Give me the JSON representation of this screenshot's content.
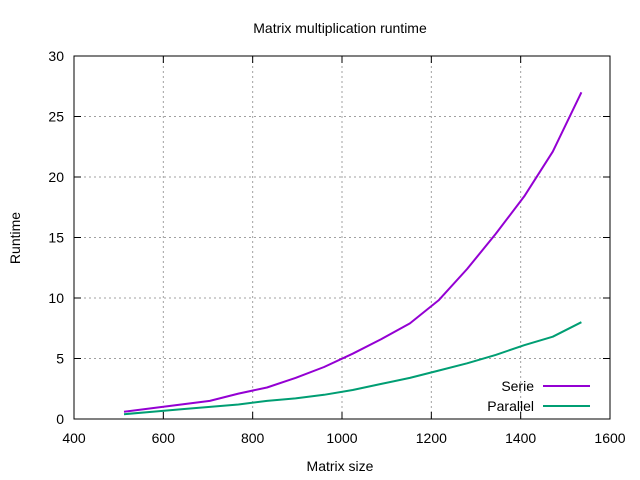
{
  "chart_data": {
    "type": "line",
    "title": "Matrix multiplication runtime",
    "xlabel": "Matrix size",
    "ylabel": "Runtime",
    "xlim": [
      400,
      1600
    ],
    "ylim": [
      0,
      30
    ],
    "xticks": [
      400,
      600,
      800,
      1000,
      1200,
      1400,
      1600
    ],
    "yticks": [
      0,
      5,
      10,
      15,
      20,
      25,
      30
    ],
    "grid": true,
    "legend_position": "bottom-right",
    "series": [
      {
        "name": "Serie",
        "color": "#9400d3",
        "x": [
          512,
          576,
          640,
          704,
          768,
          832,
          896,
          960,
          1024,
          1088,
          1152,
          1216,
          1280,
          1344,
          1408,
          1472,
          1536
        ],
        "y": [
          0.6,
          0.9,
          1.2,
          1.5,
          2.1,
          2.6,
          3.4,
          4.3,
          5.4,
          6.6,
          7.9,
          9.8,
          12.4,
          15.3,
          18.4,
          22.1,
          27.0
        ]
      },
      {
        "name": "Parallel",
        "color": "#009e73",
        "x": [
          512,
          576,
          640,
          704,
          768,
          832,
          896,
          960,
          1024,
          1088,
          1152,
          1216,
          1280,
          1344,
          1408,
          1472,
          1536
        ],
        "y": [
          0.4,
          0.6,
          0.8,
          1.0,
          1.2,
          1.5,
          1.7,
          2.0,
          2.4,
          2.9,
          3.4,
          4.0,
          4.6,
          5.3,
          6.1,
          6.8,
          8.0
        ]
      }
    ]
  }
}
